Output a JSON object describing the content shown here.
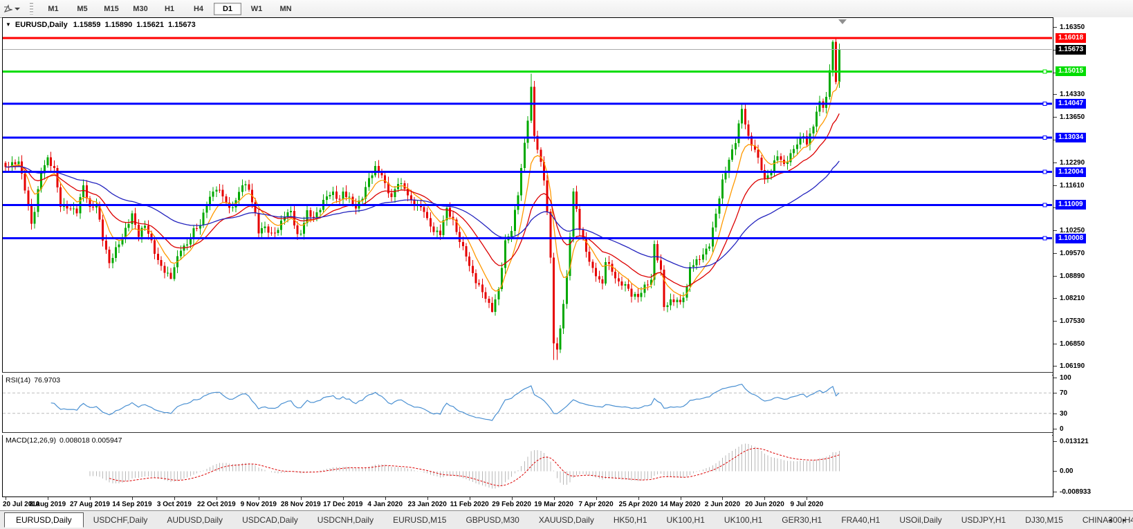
{
  "toolbar": {
    "periods": [
      "M1",
      "M5",
      "M15",
      "M30",
      "H1",
      "H4",
      "D1",
      "W1",
      "MN"
    ],
    "active_period": "D1"
  },
  "icons": {
    "menu_caret": "▼",
    "tab_scroll_left": "◂",
    "tab_scroll_right": "▸"
  },
  "chart": {
    "symbol": "EURUSD,Daily",
    "open": "1.15859",
    "high": "1.15890",
    "low": "1.15621",
    "close": "1.15673"
  },
  "price_axis": {
    "ticks": [
      1.1635,
      1.1567,
      1.1499,
      1.1433,
      1.1365,
      1.1297,
      1.1229,
      1.1161,
      1.1093,
      1.1025,
      1.0957,
      1.0889,
      1.0821,
      1.0753,
      1.0685,
      1.0619
    ],
    "labels": [
      {
        "value": "1.16018",
        "price": 1.16018,
        "bg": "#FF0000",
        "type": "resistance-line-label"
      },
      {
        "value": "1.15673",
        "price": 1.15673,
        "bg": "#000000",
        "type": "current-price-label"
      },
      {
        "value": "1.15015",
        "price": 1.15015,
        "bg": "#00DD00",
        "type": "support-line-label"
      },
      {
        "value": "1.14047",
        "price": 1.14047,
        "bg": "#0000FF",
        "type": "support-line-label"
      },
      {
        "value": "1.13034",
        "price": 1.13034,
        "bg": "#0000FF",
        "type": "support-line-label"
      },
      {
        "value": "1.12004",
        "price": 1.12004,
        "bg": "#0000FF",
        "type": "support-line-label"
      },
      {
        "value": "1.11009",
        "price": 1.11009,
        "bg": "#0000FF",
        "type": "support-line-label"
      },
      {
        "value": "1.10008",
        "price": 1.10008,
        "bg": "#0000FF",
        "type": "support-line-label"
      }
    ]
  },
  "rsi": {
    "label": "RSI(14)",
    "value": "76.9703",
    "axis": [
      {
        "text": "100",
        "level": 100
      },
      {
        "text": "70",
        "level": 70
      },
      {
        "text": "30",
        "level": 30
      },
      {
        "text": "0",
        "level": 0
      }
    ],
    "dashed_levels": [
      70,
      30
    ]
  },
  "macd": {
    "label": "MACD(12,26,9)",
    "values": "0.008018 0.005947",
    "axis": [
      {
        "text": "0.013121",
        "value": 0.013121
      },
      {
        "text": "0.00",
        "value": 0
      },
      {
        "text": "-0.008933",
        "value": -0.008933
      }
    ]
  },
  "dates": [
    "20 Jul 2019",
    "8 Aug 2019",
    "27 Aug 2019",
    "14 Sep 2019",
    "3 Oct 2019",
    "22 Oct 2019",
    "9 Nov 2019",
    "28 Nov 2019",
    "17 Dec 2019",
    "4 Jan 2020",
    "23 Jan 2020",
    "11 Feb 2020",
    "29 Feb 2020",
    "19 Mar 2020",
    "7 Apr 2020",
    "25 Apr 2020",
    "14 May 2020",
    "2 Jun 2020",
    "20 Jun 2020",
    "9 Jul 2020"
  ],
  "tabs": {
    "items": [
      "EURUSD,Daily",
      "USDCHF,Daily",
      "AUDUSD,Daily",
      "USDCAD,Daily",
      "USDCNH,Daily",
      "EURUSD,M15",
      "GBPUSD,M30",
      "XAUUSD,Daily",
      "HK50,H1",
      "UK100,H1",
      "UK100,H1",
      "GER30,H1",
      "FRA40,H1",
      "USOil,Daily",
      "USDJPY,H1",
      "DJ30,M15",
      "CHINA300,H4"
    ],
    "active": "EURUSD,Daily"
  },
  "colors": {
    "candle_up": "#00A800",
    "candle_down": "#E60000",
    "ma_fast": "#FF9900",
    "ma_mid": "#DC0000",
    "ma_slow": "#2323BE",
    "rsi_line": "#4A90D2",
    "rsi_level": "#BBBBBB",
    "macd_hist": "#B8B8B8",
    "macd_signal": "#DC0000",
    "shift_marker": "#909090"
  },
  "chart_data": {
    "type": "candlestick",
    "symbol": "EURUSD",
    "timeframe": "Daily",
    "title_ohlc": {
      "open": 1.15859,
      "high": 1.1589,
      "low": 1.15621,
      "close": 1.15673
    },
    "price_range": [
      1.0602,
      1.1662
    ],
    "candle_count": 258,
    "candles_per_date_label": 13,
    "close_anchors": [
      [
        0,
        1.1215
      ],
      [
        4,
        1.1232
      ],
      [
        6,
        1.115
      ],
      [
        8,
        1.1045
      ],
      [
        9,
        1.1085
      ],
      [
        11,
        1.12
      ],
      [
        13,
        1.124
      ],
      [
        15,
        1.1208
      ],
      [
        17,
        1.11
      ],
      [
        19,
        1.1095
      ],
      [
        22,
        1.1082
      ],
      [
        24,
        1.116
      ],
      [
        26,
        1.109
      ],
      [
        28,
        1.1105
      ],
      [
        30,
        1.1
      ],
      [
        32,
        1.0926
      ],
      [
        34,
        1.0968
      ],
      [
        36,
        1.1005
      ],
      [
        39,
        1.1072
      ],
      [
        41,
        1.101
      ],
      [
        43,
        1.1042
      ],
      [
        45,
        1.099
      ],
      [
        47,
        1.0932
      ],
      [
        49,
        1.0902
      ],
      [
        51,
        1.0882
      ],
      [
        52,
        1.0915
      ],
      [
        54,
        1.097
      ],
      [
        56,
        1.0982
      ],
      [
        58,
        1.1025
      ],
      [
        60,
        1.1042
      ],
      [
        62,
        1.1105
      ],
      [
        64,
        1.114
      ],
      [
        65,
        1.1152
      ],
      [
        67,
        1.113
      ],
      [
        69,
        1.1088
      ],
      [
        71,
        1.1112
      ],
      [
        73,
        1.1165
      ],
      [
        75,
        1.115
      ],
      [
        77,
        1.1072
      ],
      [
        78,
        1.1022
      ],
      [
        80,
        1.1035
      ],
      [
        82,
        1.1012
      ],
      [
        84,
        1.1028
      ],
      [
        86,
        1.107
      ],
      [
        88,
        1.1082
      ],
      [
        90,
        1.1008
      ],
      [
        91,
        1.1018
      ],
      [
        93,
        1.108
      ],
      [
        95,
        1.1062
      ],
      [
        97,
        1.1092
      ],
      [
        99,
        1.113
      ],
      [
        101,
        1.1136
      ],
      [
        103,
        1.1115
      ],
      [
        104,
        1.114
      ],
      [
        106,
        1.112
      ],
      [
        108,
        1.1092
      ],
      [
        110,
        1.1125
      ],
      [
        112,
        1.118
      ],
      [
        114,
        1.1212
      ],
      [
        116,
        1.1192
      ],
      [
        117,
        1.1162
      ],
      [
        119,
        1.1122
      ],
      [
        121,
        1.117
      ],
      [
        123,
        1.1152
      ],
      [
        125,
        1.1112
      ],
      [
        127,
        1.1098
      ],
      [
        129,
        1.1086
      ],
      [
        130,
        1.1056
      ],
      [
        132,
        1.1022
      ],
      [
        134,
        1.1016
      ],
      [
        136,
        1.109
      ],
      [
        138,
        1.1052
      ],
      [
        140,
        1.0992
      ],
      [
        142,
        1.0952
      ],
      [
        143,
        1.0916
      ],
      [
        145,
        1.0872
      ],
      [
        147,
        1.0842
      ],
      [
        149,
        1.0802
      ],
      [
        150,
        1.0786
      ],
      [
        152,
        1.0846
      ],
      [
        154,
        1.099
      ],
      [
        156,
        1.1026
      ],
      [
        158,
        1.1135
      ],
      [
        160,
        1.1285
      ],
      [
        161,
        1.136
      ],
      [
        162,
        1.145
      ],
      [
        163,
        1.131
      ],
      [
        164,
        1.127
      ],
      [
        166,
        1.118
      ],
      [
        167,
        1.108
      ],
      [
        168,
        1.094
      ],
      [
        169,
        1.0692
      ],
      [
        170,
        1.0662
      ],
      [
        171,
        1.0732
      ],
      [
        173,
        1.0882
      ],
      [
        175,
        1.114
      ],
      [
        177,
        1.1032
      ],
      [
        179,
        1.0962
      ],
      [
        181,
        1.0906
      ],
      [
        182,
        1.0892
      ],
      [
        184,
        1.0862
      ],
      [
        185,
        1.0936
      ],
      [
        187,
        1.0902
      ],
      [
        189,
        1.0866
      ],
      [
        191,
        1.0862
      ],
      [
        193,
        1.0832
      ],
      [
        195,
        1.0826
      ],
      [
        197,
        1.0856
      ],
      [
        199,
        1.0876
      ],
      [
        200,
        1.098
      ],
      [
        202,
        1.0902
      ],
      [
        203,
        1.0796
      ],
      [
        205,
        1.0812
      ],
      [
        207,
        1.0816
      ],
      [
        208,
        1.0806
      ],
      [
        210,
        1.0852
      ],
      [
        211,
        1.0916
      ],
      [
        213,
        1.0932
      ],
      [
        215,
        1.0952
      ],
      [
        217,
        1.0982
      ],
      [
        219,
        1.1076
      ],
      [
        221,
        1.1172
      ],
      [
        223,
        1.1236
      ],
      [
        225,
        1.1292
      ],
      [
        227,
        1.139
      ],
      [
        229,
        1.1302
      ],
      [
        231,
        1.1266
      ],
      [
        233,
        1.1212
      ],
      [
        234,
        1.1176
      ],
      [
        236,
        1.1206
      ],
      [
        238,
        1.1252
      ],
      [
        240,
        1.122
      ],
      [
        242,
        1.1252
      ],
      [
        244,
        1.1286
      ],
      [
        246,
        1.1312
      ],
      [
        247,
        1.1282
      ],
      [
        249,
        1.1342
      ],
      [
        251,
        1.1412
      ],
      [
        252,
        1.1392
      ],
      [
        253,
        1.1426
      ],
      [
        254,
        1.1505
      ],
      [
        255,
        1.159
      ],
      [
        256,
        1.147
      ],
      [
        257,
        1.15673
      ]
    ],
    "wick_overrides": {
      "8": {
        "low": 1.1027
      },
      "51": {
        "low": 1.0879
      },
      "150": {
        "low": 1.0778
      },
      "162": {
        "high": 1.1495
      },
      "169": {
        "low": 1.0636
      },
      "170": {
        "low": 1.0636
      },
      "255": {
        "high": 1.1596
      },
      "256": {
        "high": 1.16018
      }
    },
    "hlines": [
      {
        "price": 1.16018,
        "color": "#FF0000",
        "width": 3,
        "handle": false,
        "name": "resistance-line"
      },
      {
        "price": 1.15673,
        "color": "#AAAAAA",
        "width": 1,
        "handle": false,
        "name": "current-price-line"
      },
      {
        "price": 1.15015,
        "color": "#00DD00",
        "width": 3,
        "handle": true,
        "name": "support-line"
      },
      {
        "price": 1.14047,
        "color": "#0000FF",
        "width": 3,
        "handle": true,
        "name": "support-line"
      },
      {
        "price": 1.13034,
        "color": "#0000FF",
        "width": 3,
        "handle": true,
        "name": "support-line"
      },
      {
        "price": 1.12004,
        "color": "#0000FF",
        "width": 3,
        "handle": true,
        "name": "support-line"
      },
      {
        "price": 1.11009,
        "color": "#0000FF",
        "width": 3,
        "handle": true,
        "name": "support-line"
      },
      {
        "price": 1.10008,
        "color": "#0000FF",
        "width": 3,
        "handle": true,
        "name": "support-line"
      }
    ],
    "moving_averages": [
      {
        "type": "ema",
        "period": 8,
        "color": "#FF9900",
        "name": "ma-fast"
      },
      {
        "type": "ema",
        "period": 21,
        "color": "#DC0000",
        "name": "ma-mid"
      },
      {
        "type": "ema",
        "period": 55,
        "color": "#2323BE",
        "name": "ma-slow"
      }
    ],
    "rsi": {
      "period": 14,
      "last": 76.9703,
      "range": [
        0,
        100
      ],
      "dashed_levels": [
        70,
        30
      ]
    },
    "macd": {
      "fast": 12,
      "slow": 26,
      "signal": 9,
      "last_macd": 0.008018,
      "last_signal": 0.005947,
      "range": [
        -0.0099,
        0.0149
      ]
    }
  }
}
